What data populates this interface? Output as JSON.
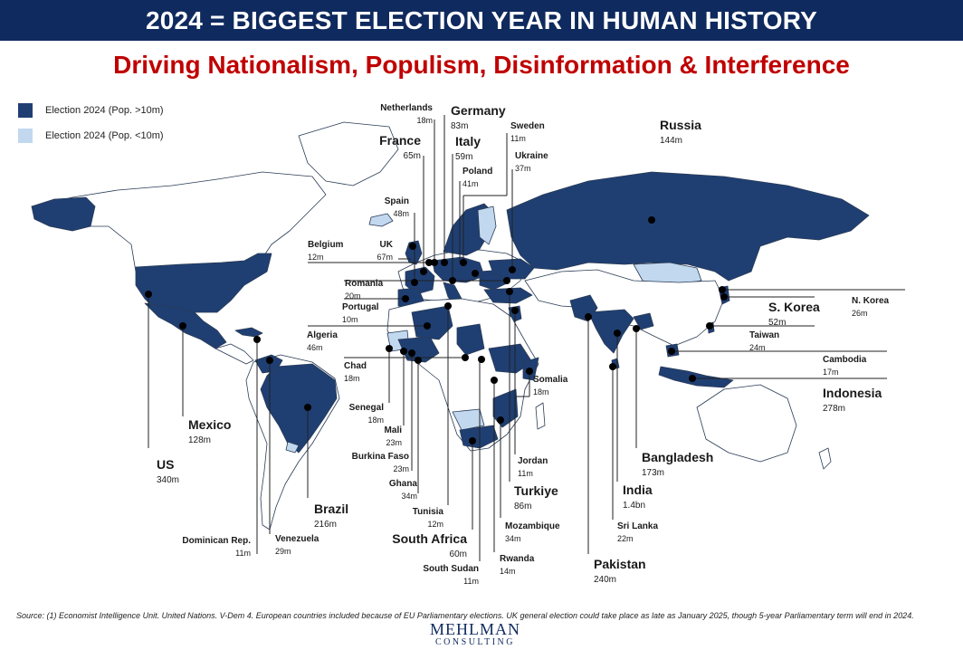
{
  "title": "2024 = BIGGEST ELECTION YEAR IN HUMAN HISTORY",
  "subtitle": "Driving Nationalism, Populism, Disinformation & Interference",
  "legend": {
    "large": {
      "label": "Election 2024 (Pop. >10m)",
      "color": "#1f3f73"
    },
    "small": {
      "label": "Election 2024 (Pop. <10m)",
      "color": "#c2d8ef"
    }
  },
  "countries": {
    "netherlands": {
      "name": "Netherlands",
      "pop": "18m"
    },
    "germany": {
      "name": "Germany",
      "pop": "83m"
    },
    "sweden": {
      "name": "Sweden",
      "pop": "11m"
    },
    "russia": {
      "name": "Russia",
      "pop": "144m"
    },
    "france": {
      "name": "France",
      "pop": "65m"
    },
    "italy": {
      "name": "Italy",
      "pop": "59m"
    },
    "ukraine": {
      "name": "Ukraine",
      "pop": "37m"
    },
    "poland": {
      "name": "Poland",
      "pop": "41m"
    },
    "spain": {
      "name": "Spain",
      "pop": "48m"
    },
    "belgium": {
      "name": "Belgium",
      "pop": "12m"
    },
    "uk": {
      "name": "UK",
      "pop": "67m"
    },
    "romania": {
      "name": "Romania",
      "pop": "20m"
    },
    "portugal": {
      "name": "Portugal",
      "pop": "10m"
    },
    "algeria": {
      "name": "Algeria",
      "pop": "46m"
    },
    "chad": {
      "name": "Chad",
      "pop": "18m"
    },
    "senegal": {
      "name": "Senegal",
      "pop": "18m"
    },
    "mali": {
      "name": "Mali",
      "pop": "23m"
    },
    "burkina": {
      "name": "Burkina Faso",
      "pop": "23m"
    },
    "ghana": {
      "name": "Ghana",
      "pop": "34m"
    },
    "tunisia": {
      "name": "Tunisia",
      "pop": "12m"
    },
    "southafrica": {
      "name": "South Africa",
      "pop": "60m"
    },
    "southsudan": {
      "name": "South Sudan",
      "pop": "11m"
    },
    "rwanda": {
      "name": "Rwanda",
      "pop": "14m"
    },
    "mozambique": {
      "name": "Mozambique",
      "pop": "34m"
    },
    "turkiye": {
      "name": "Turkiye",
      "pop": "86m"
    },
    "jordan": {
      "name": "Jordan",
      "pop": "11m"
    },
    "somalia": {
      "name": "Somalia",
      "pop": "18m"
    },
    "pakistan": {
      "name": "Pakistan",
      "pop": "240m"
    },
    "srilanka": {
      "name": "Sri Lanka",
      "pop": "22m"
    },
    "india": {
      "name": "India",
      "pop": "1.4bn"
    },
    "bangladesh": {
      "name": "Bangladesh",
      "pop": "173m"
    },
    "indonesia": {
      "name": "Indonesia",
      "pop": "278m"
    },
    "cambodia": {
      "name": "Cambodia",
      "pop": "17m"
    },
    "taiwan": {
      "name": "Taiwan",
      "pop": "24m"
    },
    "skorea": {
      "name": "S. Korea",
      "pop": "52m"
    },
    "nkorea": {
      "name": "N. Korea",
      "pop": "26m"
    },
    "us": {
      "name": "US",
      "pop": "340m"
    },
    "mexico": {
      "name": "Mexico",
      "pop": "128m"
    },
    "brazil": {
      "name": "Brazil",
      "pop": "216m"
    },
    "venezuela": {
      "name": "Venezuela",
      "pop": "29m"
    },
    "dominican": {
      "name": "Dominican Rep.",
      "pop": "11m"
    }
  },
  "source": "Source: (1) Economist Intelligence Unit. United Nations. V-Dem 4. European countries included because of EU Parliamentary elections. UK general election could take place as late as January 2025, though 5-year Parliamentary term will end in 2024.",
  "logo": {
    "line1": "MEHLMAN",
    "line2": "CONSULTING"
  }
}
